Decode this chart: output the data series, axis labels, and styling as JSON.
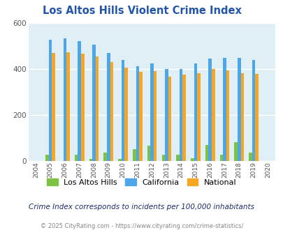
{
  "title": "Los Altos Hills Violent Crime Index",
  "years": [
    2004,
    2005,
    2006,
    2007,
    2008,
    2009,
    2010,
    2011,
    2012,
    2013,
    2014,
    2015,
    2016,
    2017,
    2018,
    2019,
    2020
  ],
  "los_altos_hills": [
    0,
    28,
    0,
    27,
    10,
    35,
    10,
    53,
    68,
    28,
    27,
    12,
    70,
    27,
    83,
    37,
    0
  ],
  "california": [
    0,
    527,
    533,
    522,
    507,
    470,
    438,
    411,
    424,
    400,
    400,
    424,
    444,
    448,
    449,
    440,
    0
  ],
  "national": [
    0,
    470,
    474,
    467,
    455,
    429,
    405,
    388,
    390,
    367,
    375,
    383,
    400,
    395,
    383,
    379,
    0
  ],
  "color_local": "#7dc243",
  "color_california": "#4da6e8",
  "color_national": "#f5a623",
  "bg_color": "#e0eff5",
  "title_color": "#2255aa",
  "subtitle": "Crime Index corresponds to incidents per 100,000 inhabitants",
  "footer": "© 2025 CityRating.com - https://www.cityrating.com/crime-statistics/",
  "ylim": [
    0,
    600
  ],
  "yticks": [
    0,
    200,
    400,
    600
  ]
}
